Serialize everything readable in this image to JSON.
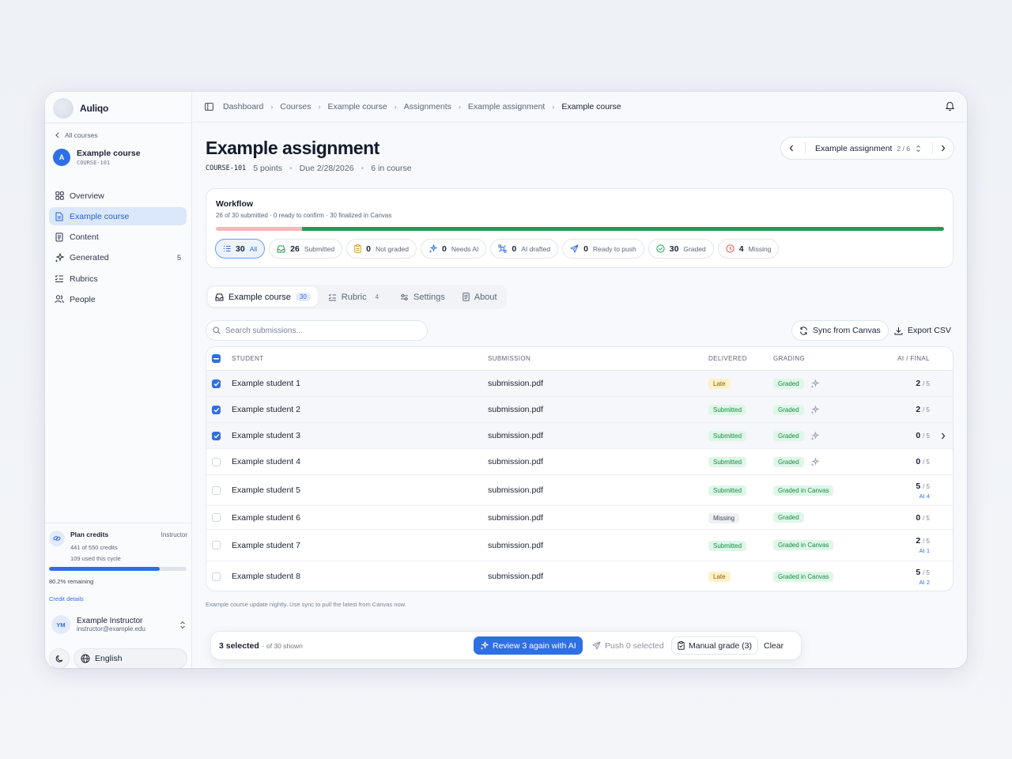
{
  "brand": {
    "name": "Auliqo"
  },
  "sidebar": {
    "back_label": "All courses",
    "course": {
      "avatar": "A",
      "name": "Example course",
      "code": "COURSE-101"
    },
    "items": [
      {
        "label": "Overview",
        "icon": "grid-icon"
      },
      {
        "label": "Example course",
        "icon": "document-icon",
        "active": true
      },
      {
        "label": "Content",
        "icon": "file-icon"
      },
      {
        "label": "Generated",
        "icon": "sparkles-icon",
        "count": "5"
      },
      {
        "label": "Rubrics",
        "icon": "list-check-icon"
      },
      {
        "label": "People",
        "icon": "users-icon"
      }
    ],
    "credits": {
      "title": "Plan credits",
      "role": "Instructor",
      "used_line": "441 of 550 credits",
      "cycle_line": "109 used this cycle",
      "fraction": 0.802,
      "remaining": "80.2% remaining",
      "details_link": "Credit details"
    },
    "user": {
      "initials": "YM",
      "name": "Example Instructor",
      "email": "instructor@example.edu"
    },
    "language": "English"
  },
  "breadcrumbs": [
    "Dashboard",
    "Courses",
    "Example course",
    "Assignments",
    "Example assignment",
    "Example course"
  ],
  "page": {
    "title": "Example assignment",
    "code": "COURSE-101",
    "points": "5 points",
    "due": "Due 2/28/2026",
    "in_course": "6 in course"
  },
  "pager": {
    "label": "Example assignment",
    "position": "2 / 6"
  },
  "workflow": {
    "title": "Workflow",
    "subtitle": "26 of 30 submitted · 0 ready to confirm · 30 finalized in Canvas",
    "progress": {
      "missing_fraction": 0.118,
      "graded_fraction": 0.882
    },
    "chips": [
      {
        "num": "30",
        "label": "All",
        "icon": "list-icon",
        "active": true
      },
      {
        "num": "26",
        "label": "Submitted",
        "icon": "inbox-icon"
      },
      {
        "num": "0",
        "label": "Not graded",
        "icon": "clipboard-icon"
      },
      {
        "num": "0",
        "label": "Needs AI",
        "icon": "sparkle-icon"
      },
      {
        "num": "0",
        "label": "AI drafted",
        "icon": "ai-draft-icon"
      },
      {
        "num": "0",
        "label": "Ready to push",
        "icon": "send-icon"
      },
      {
        "num": "30",
        "label": "Graded",
        "icon": "check-circle-icon"
      },
      {
        "num": "4",
        "label": "Missing",
        "icon": "clock-alert-icon"
      }
    ]
  },
  "tabs": [
    {
      "label": "Example course",
      "badge": "30",
      "active": true
    },
    {
      "label": "Rubric",
      "badge": "4"
    },
    {
      "label": "Settings"
    },
    {
      "label": "About"
    }
  ],
  "search": {
    "placeholder": "Search submissions..."
  },
  "actions": {
    "sync": "Sync from Canvas",
    "export": "Export CSV"
  },
  "table": {
    "headers": {
      "student": "STUDENT",
      "submission": "SUBMISSION",
      "delivered": "DELIVERED",
      "grading": "GRADING",
      "score": "AI / FINAL"
    },
    "rows": [
      {
        "student": "Example student 1",
        "file": "submission.pdf",
        "delivered": "Late",
        "grading": "Graded",
        "ai_icon": true,
        "score": "2",
        "den": "/ 5",
        "ai": "",
        "checked": true
      },
      {
        "student": "Example student 2",
        "file": "submission.pdf",
        "delivered": "Submitted",
        "grading": "Graded",
        "ai_icon": true,
        "score": "2",
        "den": "/ 5",
        "ai": "",
        "checked": true
      },
      {
        "student": "Example student 3",
        "file": "submission.pdf",
        "delivered": "Submitted",
        "grading": "Graded",
        "ai_icon": true,
        "score": "0",
        "den": "/ 5",
        "ai": "",
        "checked": true,
        "chevron": true
      },
      {
        "student": "Example student 4",
        "file": "submission.pdf",
        "delivered": "Submitted",
        "grading": "Graded",
        "ai_icon": true,
        "score": "0",
        "den": "/ 5",
        "ai": "",
        "checked": false
      },
      {
        "student": "Example student 5",
        "file": "submission.pdf",
        "delivered": "Submitted",
        "grading": "Graded in Canvas",
        "ai_icon": false,
        "score": "5",
        "den": "/ 5",
        "ai": "AI 4",
        "checked": false
      },
      {
        "student": "Example student 6",
        "file": "submission.pdf",
        "delivered": "Missing",
        "grading": "Graded",
        "ai_icon": false,
        "score": "0",
        "den": "/ 5",
        "ai": "",
        "checked": false
      },
      {
        "student": "Example student 7",
        "file": "submission.pdf",
        "delivered": "Submitted",
        "grading": "Graded in Canvas",
        "ai_icon": false,
        "score": "2",
        "den": "/ 5",
        "ai": "AI 1",
        "checked": false
      },
      {
        "student": "Example student 8",
        "file": "submission.pdf",
        "delivered": "Late",
        "grading": "Graded in Canvas",
        "ai_icon": false,
        "score": "5",
        "den": "/ 5",
        "ai": "AI 2",
        "checked": false
      }
    ]
  },
  "footnote": "Example course update nightly. Use sync to pull the latest from Canvas now.",
  "selection": {
    "count": "3 selected",
    "of": "· of 30 shown",
    "review": "Review 3 again with AI",
    "push": "Push 0 selected",
    "manual": "Manual grade (3)",
    "clear": "Clear"
  },
  "colors": {
    "accent": "#2f6fe4",
    "success": "#1f9d55",
    "missing": "#f3b8b8"
  }
}
